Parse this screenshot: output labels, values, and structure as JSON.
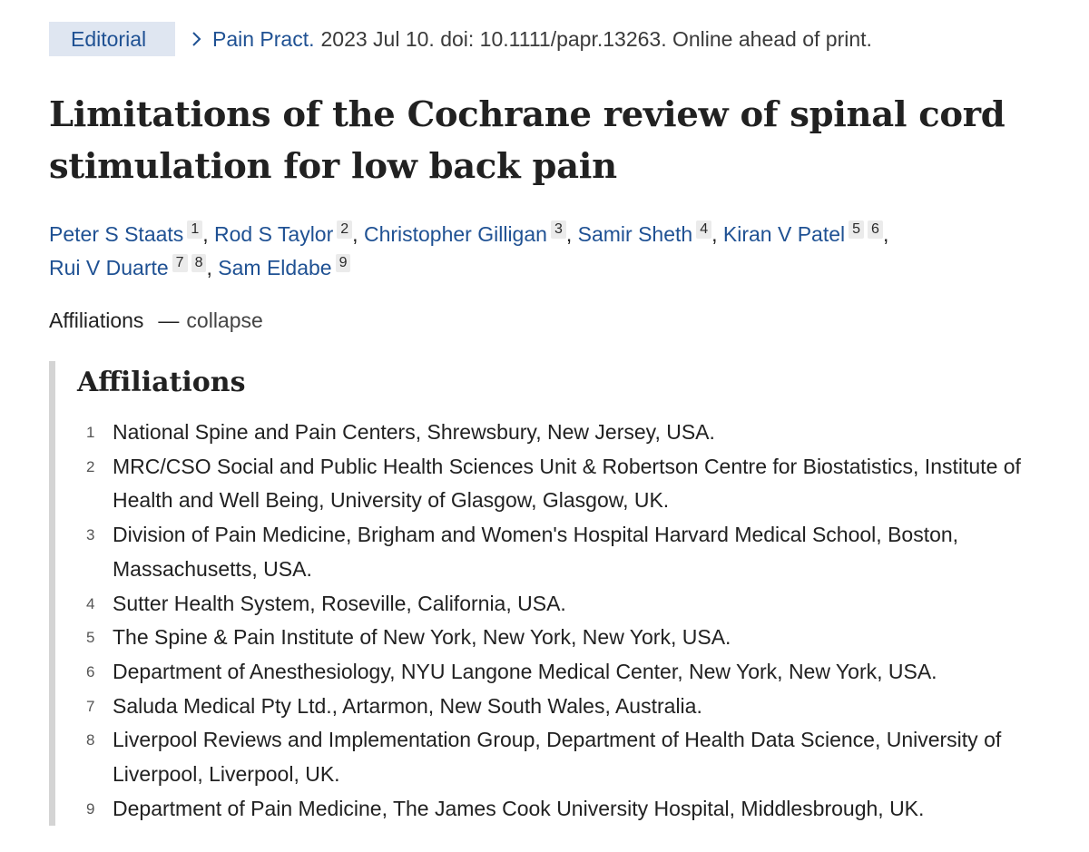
{
  "meta": {
    "article_type": "Editorial",
    "journal": "Pain Pract.",
    "citation": "2023 Jul 10. doi: 10.1111/papr.13263. Online ahead of print."
  },
  "title": "Limitations of the Cochrane review of spinal cord stimulation for low back pain",
  "authors": [
    {
      "name": "Peter S Staats",
      "affs": [
        "1"
      ]
    },
    {
      "name": "Rod S Taylor",
      "affs": [
        "2"
      ]
    },
    {
      "name": "Christopher Gilligan",
      "affs": [
        "3"
      ]
    },
    {
      "name": "Samir Sheth",
      "affs": [
        "4"
      ]
    },
    {
      "name": "Kiran V Patel",
      "affs": [
        "5",
        "6"
      ]
    },
    {
      "name": "Rui V Duarte",
      "affs": [
        "7",
        "8"
      ]
    },
    {
      "name": "Sam Eldabe",
      "affs": [
        "9"
      ]
    }
  ],
  "affiliations_toggle": {
    "label": "Affiliations",
    "dash": "—",
    "action": "collapse"
  },
  "affiliations": {
    "heading": "Affiliations",
    "items": [
      {
        "num": "1",
        "text": "National Spine and Pain Centers, Shrewsbury, New Jersey, USA."
      },
      {
        "num": "2",
        "text": "MRC/CSO Social and Public Health Sciences Unit & Robertson Centre for Biostatistics, Institute of Health and Well Being, University of Glasgow, Glasgow, UK."
      },
      {
        "num": "3",
        "text": "Division of Pain Medicine, Brigham and Women's Hospital Harvard Medical School, Boston, Massachusetts, USA."
      },
      {
        "num": "4",
        "text": "Sutter Health System, Roseville, California, USA."
      },
      {
        "num": "5",
        "text": "The Spine & Pain Institute of New York, New York, New York, USA."
      },
      {
        "num": "6",
        "text": "Department of Anesthesiology, NYU Langone Medical Center, New York, New York, USA."
      },
      {
        "num": "7",
        "text": "Saluda Medical Pty Ltd., Artarmon, New South Wales, Australia."
      },
      {
        "num": "8",
        "text": "Liverpool Reviews and Implementation Group, Department of Health Data Science, University of Liverpool, Liverpool, UK."
      },
      {
        "num": "9",
        "text": "Department of Pain Medicine, The James Cook University Hospital, Middlesbrough, UK."
      }
    ]
  },
  "colors": {
    "link": "#1f5193",
    "badge_bg": "#dfe6f1",
    "ref_bg": "#ebebeb",
    "panel_border": "#d4d4d4"
  }
}
